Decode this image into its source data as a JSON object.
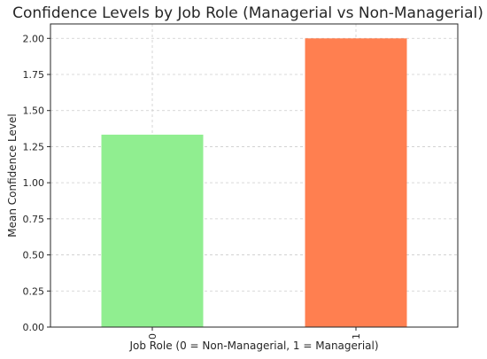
{
  "chart_data": {
    "type": "bar",
    "title": "Confidence Levels by Job Role (Managerial vs Non-Managerial)",
    "xlabel": "Job Role (0 = Non-Managerial, 1 = Managerial)",
    "ylabel": "Mean Confidence Level",
    "categories": [
      "0",
      "1"
    ],
    "values": [
      1.333,
      2.0
    ],
    "colors": [
      "#90ee90",
      "#ff7f50"
    ],
    "ylim": [
      0,
      2.1
    ],
    "yticks": [
      "0.00",
      "0.25",
      "0.50",
      "0.75",
      "1.00",
      "1.25",
      "1.50",
      "1.75",
      "2.00"
    ],
    "grid": true,
    "x_tick_rotation": 90
  }
}
